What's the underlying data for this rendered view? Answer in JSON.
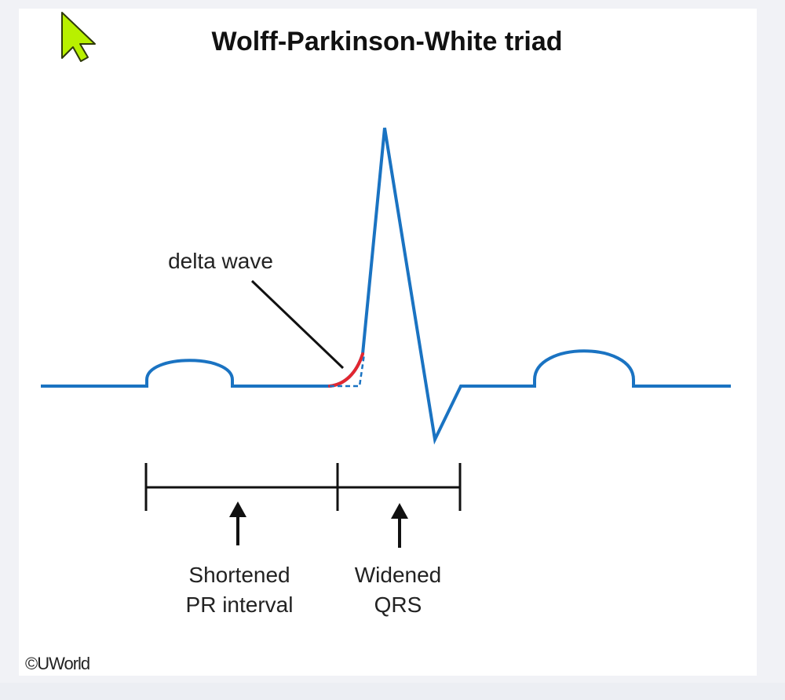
{
  "figure": {
    "title": "Wolff-Parkinson-White triad",
    "delta_wave_label": "delta wave",
    "pr_label_line1": "Shortened",
    "pr_label_line2": "PR interval",
    "qrs_label_line1": "Widened",
    "qrs_label_line2": "QRS",
    "copyright": "©UWorld"
  },
  "colors": {
    "ecg_trace": "#1a73c2",
    "delta_wave": "#e3262f",
    "annotation": "#111111",
    "page_background": "#f1f2f6",
    "card_background": "#ffffff",
    "cursor_fill": "#b8f000"
  },
  "icons": {
    "cursor": "mouse-pointer-icon"
  }
}
